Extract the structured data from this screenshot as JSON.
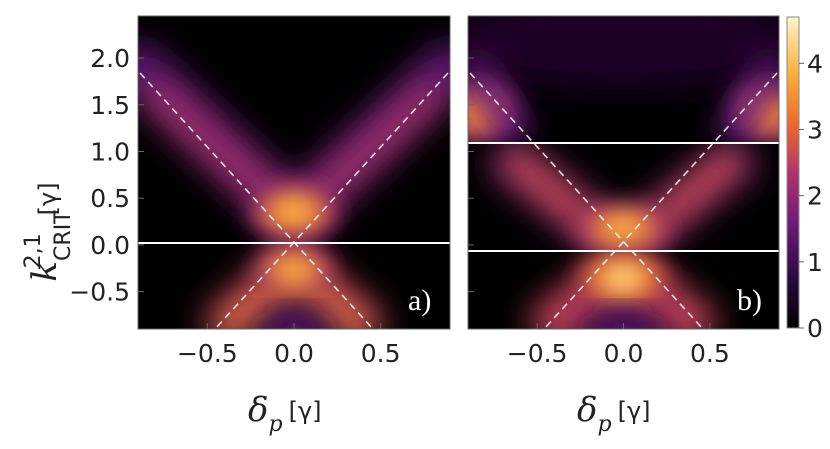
{
  "chart_data": {
    "type": "heatmap",
    "panels": [
      {
        "label": "a)",
        "xlim": [
          -0.9,
          0.9
        ],
        "ylim": [
          -0.9,
          2.45
        ],
        "horizontal_lines_y": [
          0.0
        ],
        "dashed_lines": [
          {
            "from": [
              -0.9,
              1.8
            ],
            "to": [
              0.9,
              1.8
            ]
          },
          {
            "from": [
              -0.45,
              -0.9
            ],
            "to": [
              0.45,
              -0.9
            ]
          }
        ],
        "lobes": [
          {
            "x": 0.0,
            "y": 0.25,
            "peak": 3.0
          },
          {
            "x": 0.0,
            "y": -0.25,
            "peak": 3.0
          }
        ]
      },
      {
        "label": "b)",
        "xlim": [
          -0.9,
          0.9
        ],
        "ylim": [
          -0.9,
          2.45
        ],
        "horizontal_lines_y": [
          -0.08,
          1.08
        ],
        "lobes": [
          {
            "x": 0.0,
            "y": 0.2,
            "peak": 3.3
          },
          {
            "x": 0.0,
            "y": -0.2,
            "peak": 4.5
          },
          {
            "x": -0.75,
            "y": 1.3,
            "peak": 2.0
          },
          {
            "x": 0.75,
            "y": 1.3,
            "peak": 2.0
          }
        ]
      }
    ],
    "x_ticks": [
      "−0.5",
      "0.0",
      "0.5"
    ],
    "x_tick_values": [
      -0.5,
      0.0,
      0.5
    ],
    "y_ticks": [
      "2.0",
      "1.5",
      "1.0",
      "0.5",
      "0.0",
      "−0.5"
    ],
    "y_tick_values": [
      2.0,
      1.5,
      1.0,
      0.5,
      0.0,
      -0.5
    ],
    "colorbar": {
      "range": [
        0,
        4.7
      ],
      "ticks": [
        "4",
        "3",
        "2",
        "1",
        "0"
      ],
      "tick_values": [
        4,
        3,
        2,
        1,
        0
      ],
      "colormap": [
        "#000000",
        "#2a0a42",
        "#6a1a7a",
        "#b3336b",
        "#ef6a2a",
        "#fbb03b",
        "#fff5c8"
      ]
    },
    "ylabel_symbol": "k",
    "ylabel_sup": "2,1",
    "ylabel_sub": "CRIT",
    "ylabel_unit": "[γ]",
    "xlabel_symbol": "δ",
    "xlabel_sub": "p",
    "xlabel_unit": "[γ]"
  }
}
